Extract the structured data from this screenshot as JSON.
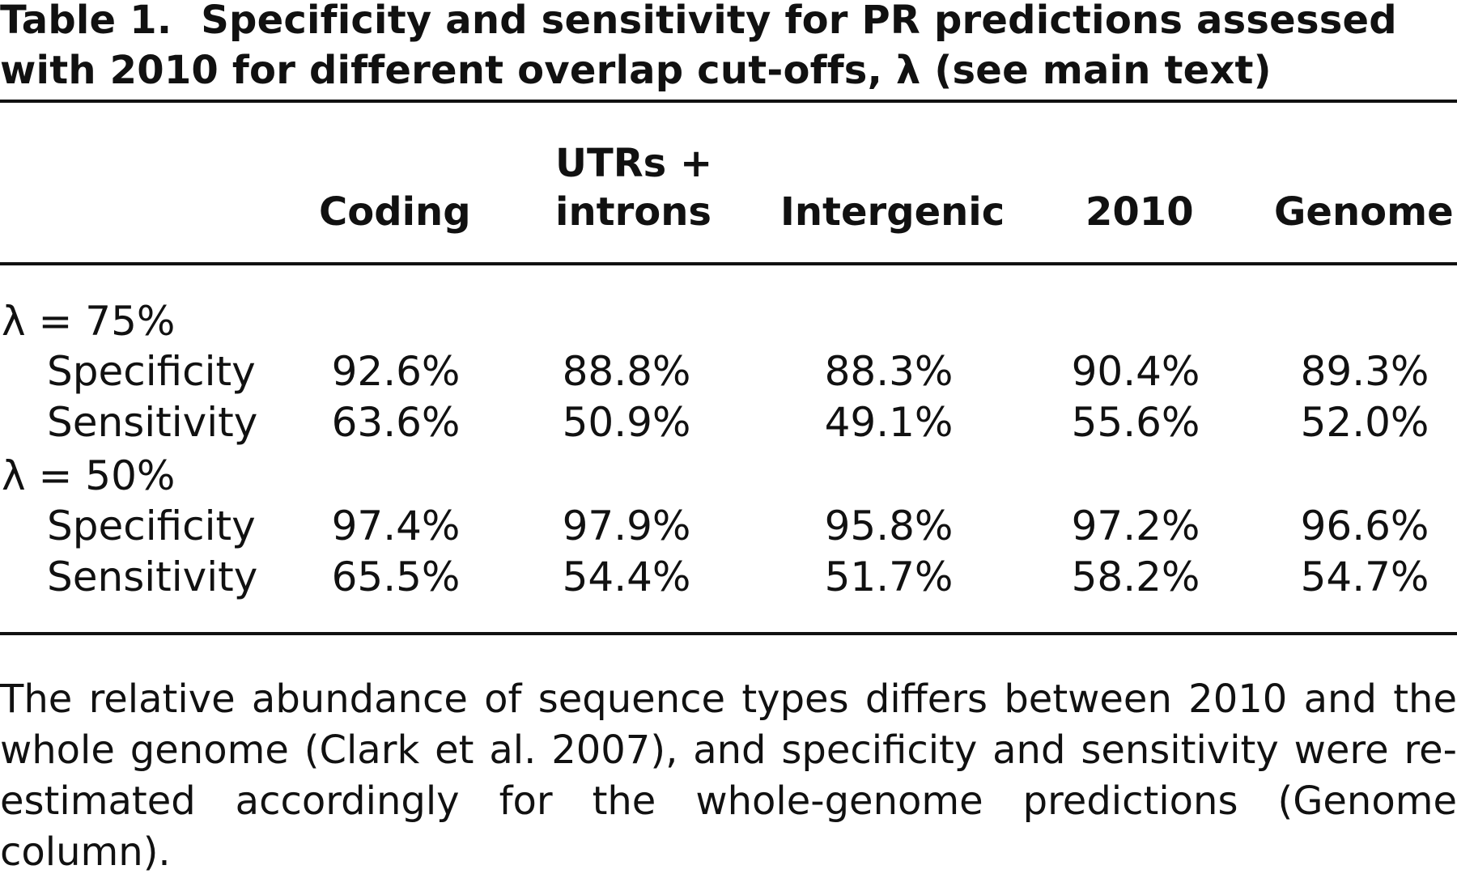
{
  "caption": {
    "label": "Table 1.",
    "text": "Specificity and sensitivity for PR predictions assessed with 2010 for different overlap cut-offs, λ (see main text)"
  },
  "table": {
    "columns": {
      "coding": "Coding",
      "utrs_line1": "UTRs +",
      "utrs_line2": "introns",
      "intergenic": "Intergenic",
      "c2010": "2010",
      "genome": "Genome"
    },
    "groups": [
      {
        "label": "λ = 75%",
        "rows": [
          {
            "label": "Specificity",
            "values": [
              "92.6%",
              "88.8%",
              "88.3%",
              "90.4%",
              "89.3%"
            ]
          },
          {
            "label": "Sensitivity",
            "values": [
              "63.6%",
              "50.9%",
              "49.1%",
              "55.6%",
              "52.0%"
            ]
          }
        ]
      },
      {
        "label": "λ = 50%",
        "rows": [
          {
            "label": "Specificity",
            "values": [
              "97.4%",
              "97.9%",
              "95.8%",
              "97.2%",
              "96.6%"
            ]
          },
          {
            "label": "Sensitivity",
            "values": [
              "65.5%",
              "54.4%",
              "51.7%",
              "58.2%",
              "54.7%"
            ]
          }
        ]
      }
    ]
  },
  "footnote": "The relative abundance of sequence types differs between 2010 and the whole genome (Clark et al. 2007), and specificity and sensitivity were re-estimated accordingly for the whole-genome predictions (Genome column)."
}
